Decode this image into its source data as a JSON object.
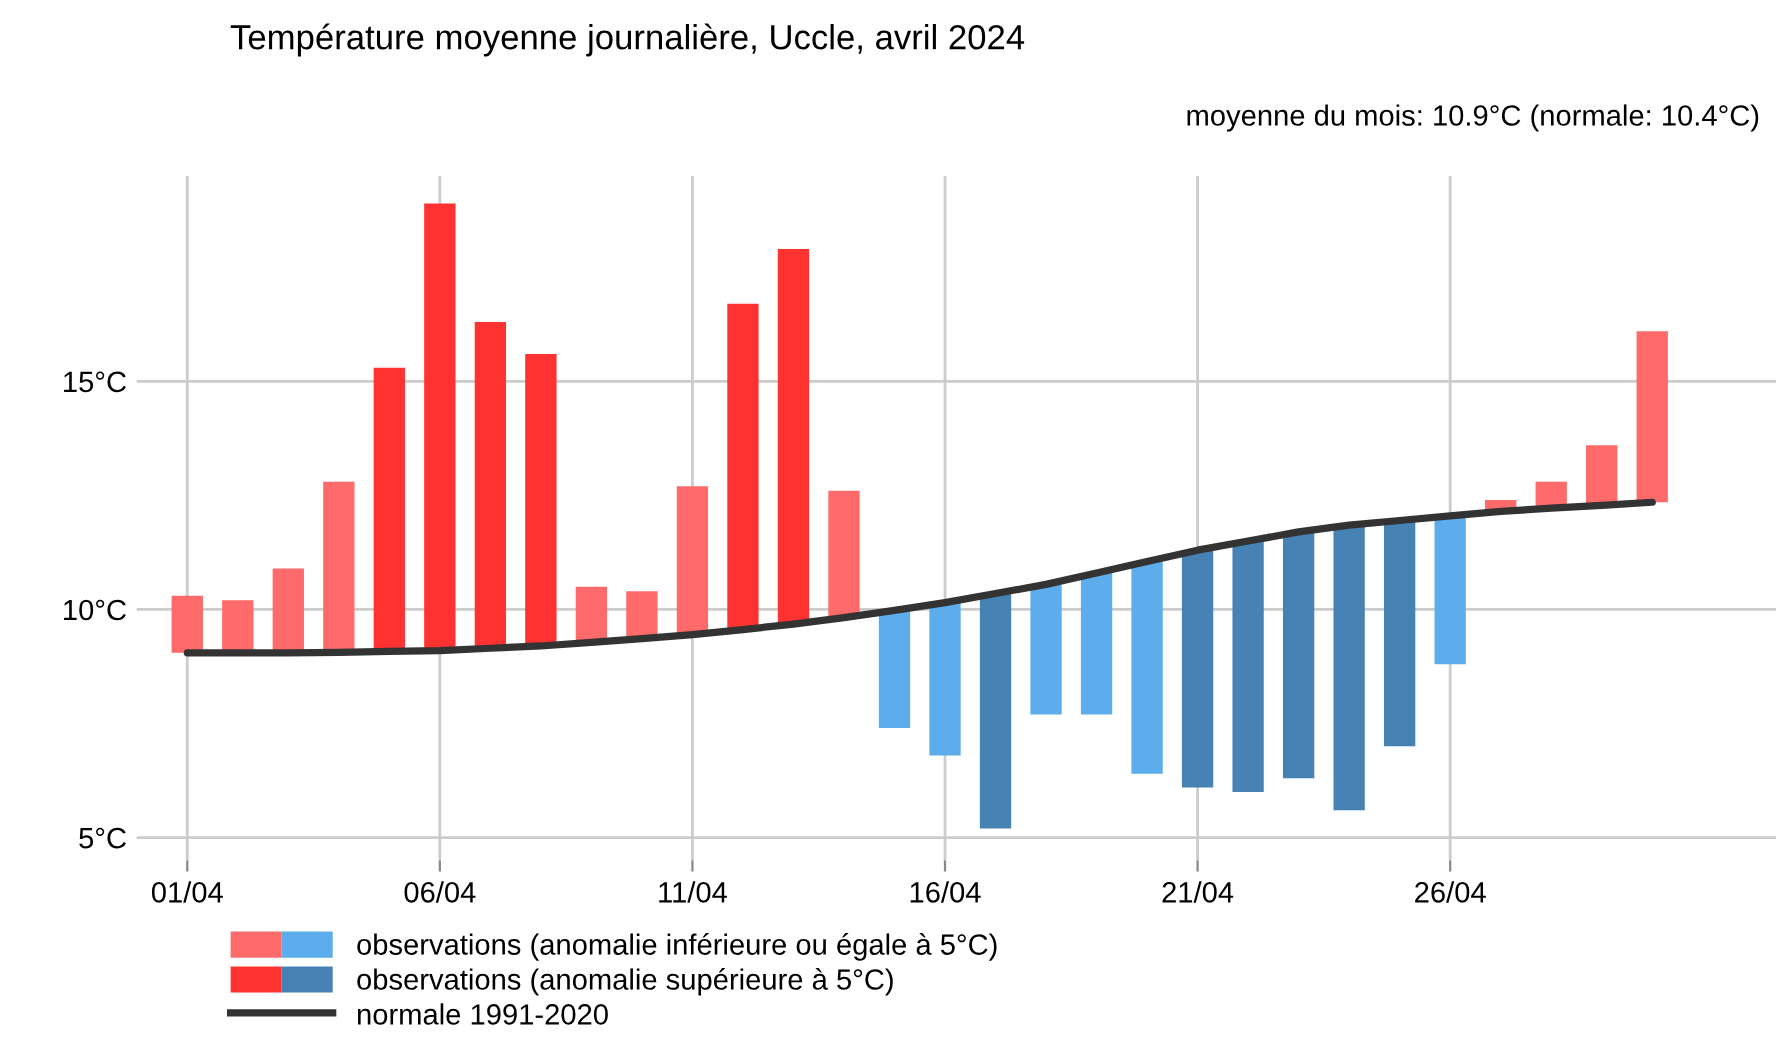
{
  "chart_data": {
    "type": "bar",
    "title": "Température moyenne journalière, Uccle, avril 2024",
    "annotations": [
      "moyenne du mois: 10.9°C (normale: 10.4°C)"
    ],
    "categories": [
      "01/04",
      null,
      null,
      null,
      null,
      "06/04",
      null,
      null,
      null,
      null,
      "11/04",
      null,
      null,
      null,
      null,
      "16/04",
      null,
      null,
      null,
      null,
      "21/04",
      null,
      null,
      null,
      null,
      "26/04",
      null,
      null,
      null,
      null
    ],
    "series": [
      {
        "name": "observations (anomalie inférieure ou égale à 5°C)",
        "base": [
          9.05,
          9.05,
          9.05,
          9.06,
          null,
          null,
          null,
          null,
          9.28,
          9.36,
          9.45,
          null,
          null,
          9.82,
          9.98,
          10.15,
          null,
          10.55,
          10.8,
          11.05,
          null,
          null,
          null,
          null,
          null,
          12.05,
          12.15,
          12.22,
          12.28,
          12.35
        ],
        "values": [
          1.25,
          1.15,
          1.85,
          3.74,
          null,
          null,
          null,
          null,
          1.22,
          1.04,
          3.25,
          null,
          null,
          2.78,
          -2.58,
          -3.35,
          null,
          -2.85,
          -3.1,
          -4.65,
          null,
          null,
          null,
          null,
          null,
          -3.25,
          0.25,
          0.58,
          1.32,
          3.75
        ],
        "colors": [
          "#ff6a6a",
          "#ff6a6a",
          "#ff6a6a",
          "#ff6a6a",
          null,
          null,
          null,
          null,
          "#ff6a6a",
          "#ff6a6a",
          "#ff6a6a",
          null,
          null,
          "#ff6a6a",
          "#5dadec",
          "#5dadec",
          null,
          "#5dadec",
          "#5dadec",
          "#5dadec",
          null,
          null,
          null,
          null,
          null,
          "#5dadec",
          "#ff6a6a",
          "#ff6a6a",
          "#ff6a6a",
          "#ff6a6a"
        ]
      },
      {
        "name": "observations (anomalie supérieure à 5°C)",
        "base": [
          null,
          null,
          null,
          null,
          9.08,
          9.1,
          9.15,
          9.2,
          null,
          null,
          null,
          9.56,
          9.68,
          null,
          null,
          null,
          10.35,
          null,
          null,
          null,
          11.3,
          11.5,
          11.7,
          11.85,
          11.95,
          null,
          null,
          null,
          null,
          null
        ],
        "values": [
          null,
          null,
          null,
          null,
          6.22,
          9.8,
          7.15,
          6.4,
          null,
          null,
          null,
          7.14,
          8.22,
          null,
          null,
          null,
          -5.15,
          null,
          null,
          null,
          -5.2,
          -5.5,
          -5.4,
          -6.25,
          -4.95,
          null,
          null,
          null,
          null,
          null
        ],
        "colors": [
          null,
          null,
          null,
          null,
          "#ff3232",
          "#ff3232",
          "#ff3232",
          "#ff3232",
          null,
          null,
          null,
          "#ff3232",
          "#ff3232",
          null,
          null,
          null,
          "#4682b4",
          null,
          null,
          null,
          "#4682b4",
          "#4682b4",
          "#4682b4",
          "#4682b4",
          "#4682b4",
          null,
          null,
          null,
          null,
          null
        ]
      },
      {
        "name": "normale 1991-2020",
        "type": "line",
        "color": "#333333",
        "values": [
          9.05,
          9.05,
          9.05,
          9.06,
          9.08,
          9.1,
          9.15,
          9.2,
          9.28,
          9.36,
          9.45,
          9.56,
          9.68,
          9.82,
          9.98,
          10.15,
          10.35,
          10.55,
          10.8,
          11.05,
          11.3,
          11.5,
          11.7,
          11.85,
          11.95,
          12.05,
          12.15,
          12.22,
          12.28,
          12.35
        ]
      }
    ],
    "ylim": [
      4.5,
      19.5
    ],
    "yticks": [
      {
        "value": 5,
        "label": "5°C"
      },
      {
        "value": 10,
        "label": "10°C"
      },
      {
        "value": 15,
        "label": "15°C"
      }
    ],
    "grid": true,
    "legend": "bottom left"
  }
}
